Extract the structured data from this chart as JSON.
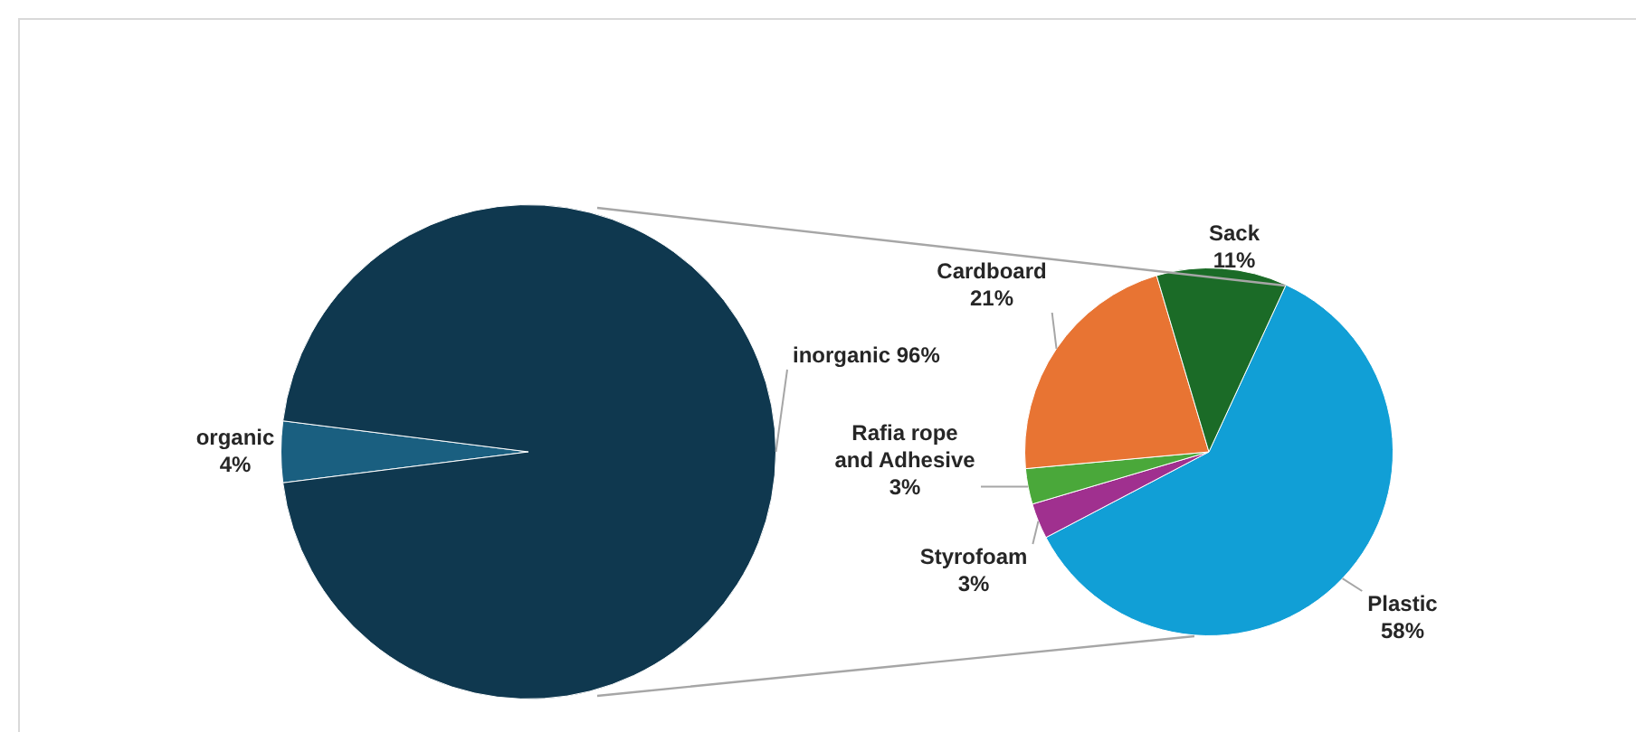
{
  "chart_data": [
    {
      "type": "pie",
      "categories": [
        "organic",
        "inorganic"
      ],
      "values": [
        4,
        96
      ],
      "colors": [
        "#1a5f80",
        "#0f384f"
      ],
      "value_labels": [
        "4%",
        "96%"
      ],
      "data_labels": true
    },
    {
      "type": "pie",
      "categories": [
        "Plastic",
        "Styrofoam",
        "Rafia rope and Adhesive",
        "Cardboard",
        "Sack"
      ],
      "values": [
        58,
        3,
        3,
        21,
        11
      ],
      "colors": [
        "#119fd6",
        "#a0308f",
        "#4aa83a",
        "#e87433",
        "#1b6b27"
      ],
      "value_labels": [
        "58%",
        "3%",
        "3%",
        "21%",
        "11%"
      ],
      "data_labels": true
    }
  ]
}
